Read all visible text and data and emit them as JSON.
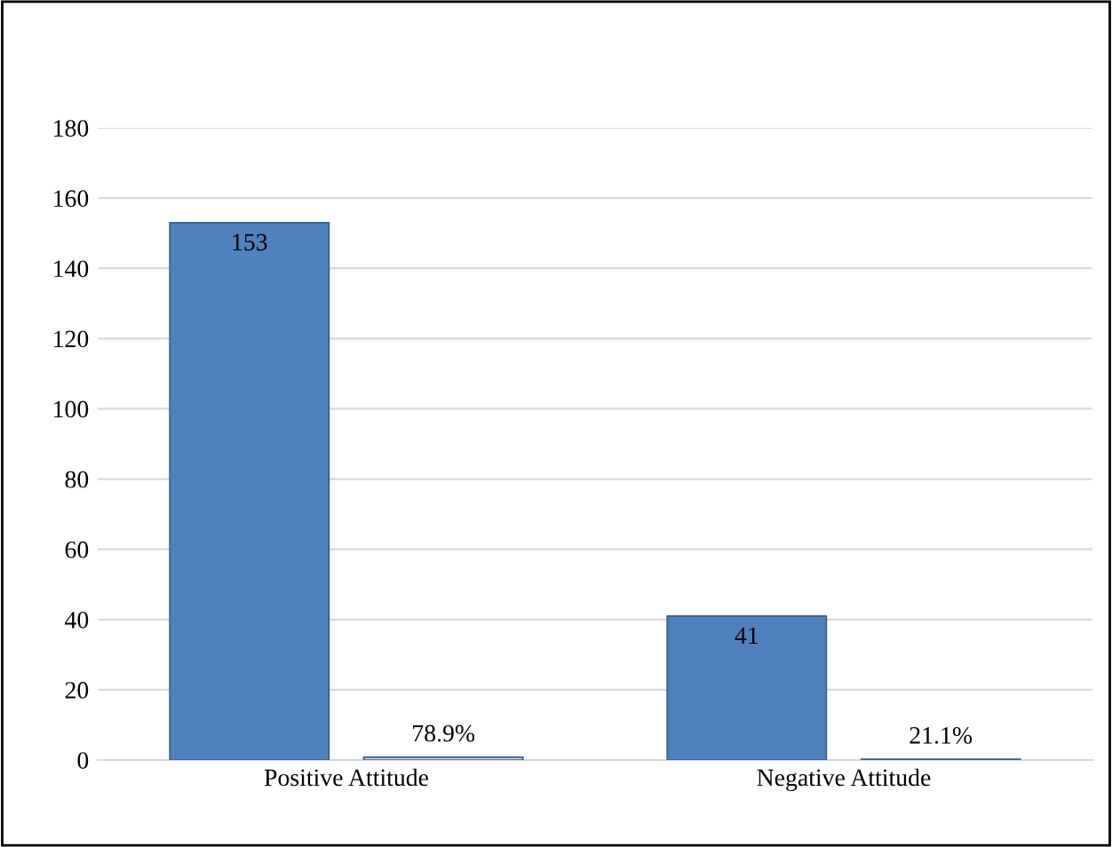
{
  "chart_data": {
    "type": "bar",
    "categories": [
      "Positive Attitude",
      "Negative Attitude"
    ],
    "series": [
      {
        "color": "#4f81bd",
        "values": [
          153,
          41
        ],
        "value_labels": [
          "153",
          "41"
        ]
      },
      {
        "color": "#d9d9d9",
        "values": [
          0.789,
          0.211
        ],
        "value_labels": [
          "78.9%",
          "21.1%"
        ]
      }
    ],
    "ylim": [
      0,
      180
    ],
    "yticks": [
      0,
      20,
      40,
      60,
      80,
      100,
      120,
      140,
      160,
      180
    ],
    "grid": "y",
    "legend": false
  }
}
